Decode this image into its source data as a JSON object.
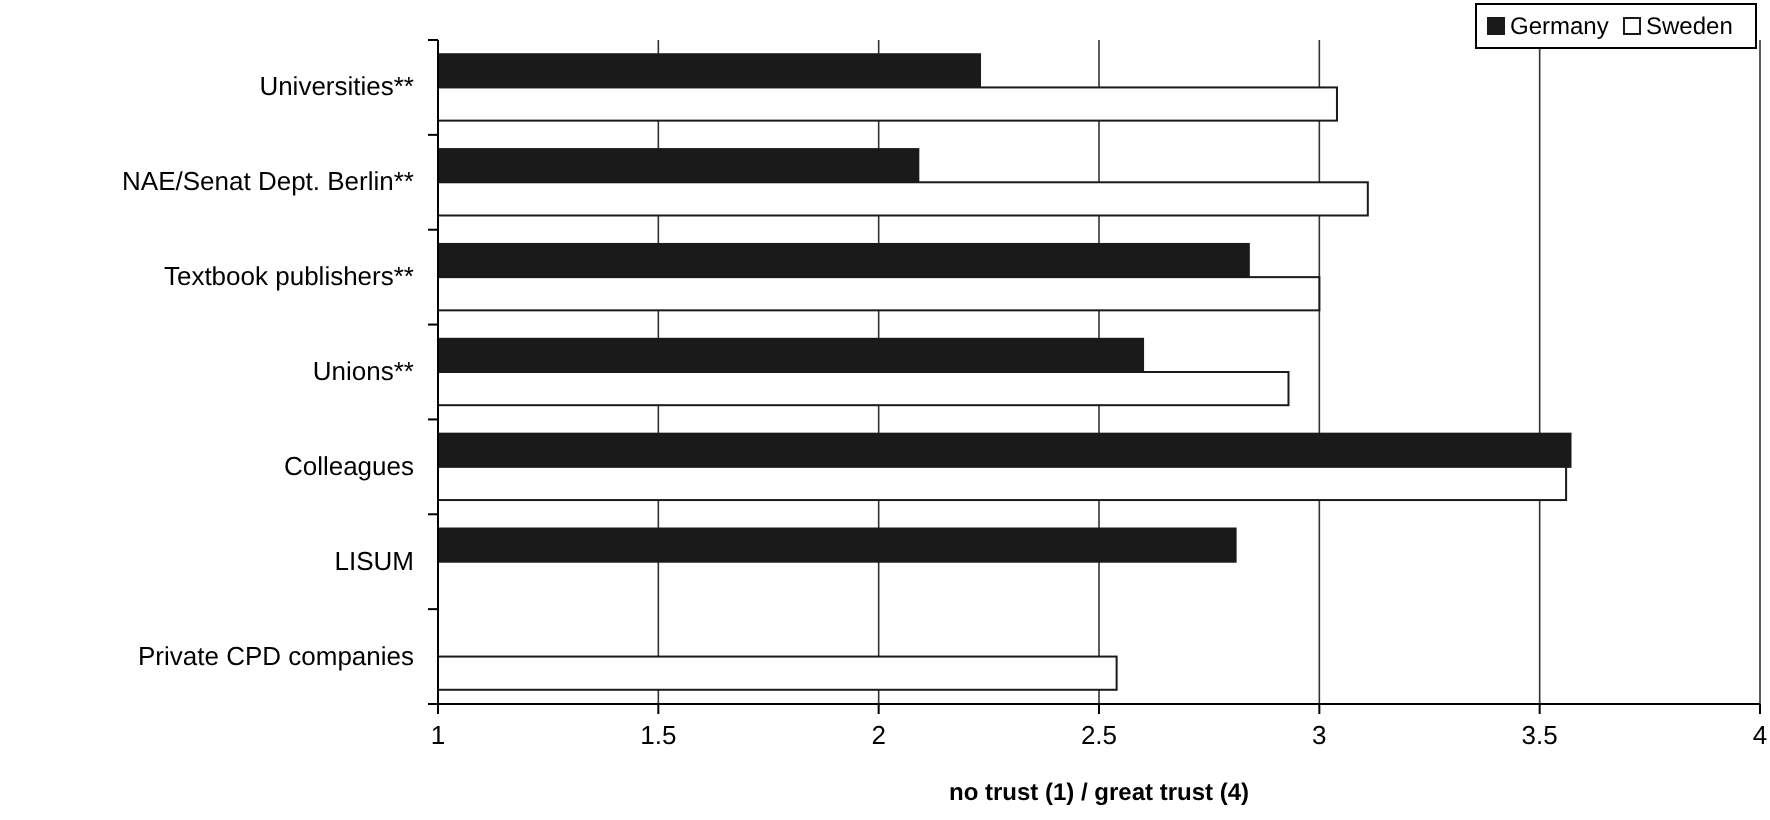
{
  "chart_data": {
    "type": "bar",
    "orientation": "horizontal",
    "xlabel": "no trust (1) / great trust (4)",
    "categories": [
      "Universities**",
      "NAE/Senat Dept. Berlin**",
      "Textbook publishers**",
      "Unions**",
      "Colleagues",
      "LISUM",
      "Private CPD companies"
    ],
    "series": [
      {
        "name": "Germany",
        "color": "#1a1a1a",
        "values": [
          2.23,
          2.09,
          2.84,
          2.6,
          3.57,
          2.81,
          null
        ]
      },
      {
        "name": "Sweden",
        "color": "#ffffff",
        "values": [
          3.04,
          3.11,
          3.0,
          2.93,
          3.56,
          null,
          2.54
        ]
      }
    ],
    "xlim": [
      1,
      4
    ],
    "xticks": [
      1,
      1.5,
      2,
      2.5,
      3,
      3.5,
      4
    ],
    "grid": "x",
    "legend": "top right"
  }
}
